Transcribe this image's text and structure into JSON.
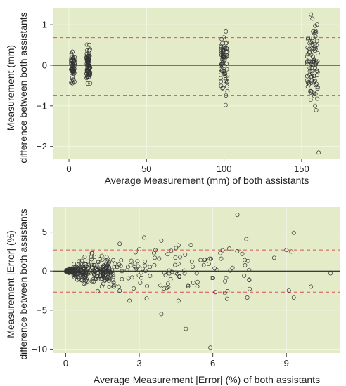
{
  "colors": {
    "panel_background": "#e3ebc9",
    "gridline": "#f2f5e6",
    "zero_line": "#000000",
    "limit_line": "#d9534f",
    "point_stroke": "#333333"
  },
  "chart_data": [
    {
      "type": "scatter",
      "xlabel": "Average Measurement (mm) of both assistants",
      "ylabel_lines": [
        "Measurement (mm)",
        "difference between both assistants"
      ],
      "xlim": [
        -10,
        175
      ],
      "ylim": [
        -2.3,
        1.4
      ],
      "xticks": [
        0,
        50,
        100,
        150
      ],
      "yticks": [
        -2,
        -1,
        0,
        1
      ],
      "grid": true,
      "reference_lines": [
        {
          "kind": "mean",
          "y": 0,
          "style": "solid"
        },
        {
          "kind": "upper-limit",
          "y": 0.68,
          "style": "dashed"
        },
        {
          "kind": "lower-limit",
          "y": -0.75,
          "style": "dashed"
        }
      ],
      "clusters": [
        {
          "x_center": 2.5,
          "x_spread": 1.2,
          "n": 55,
          "y_mean": 0.0,
          "y_sd": 0.2,
          "y_min": -0.5,
          "y_max": 0.5
        },
        {
          "x_center": 12.5,
          "x_spread": 1.2,
          "n": 75,
          "y_mean": 0.0,
          "y_sd": 0.2,
          "y_min": -0.45,
          "y_max": 0.55
        },
        {
          "x_center": 100,
          "x_spread": 2.2,
          "n": 70,
          "y_mean": 0.05,
          "y_sd": 0.38,
          "y_min": -1.0,
          "y_max": 0.95
        },
        {
          "x_center": 157,
          "x_spread": 3.5,
          "n": 90,
          "y_mean": 0.0,
          "y_sd": 0.55,
          "y_min": -1.45,
          "y_max": 1.25
        }
      ],
      "notable_points": [
        {
          "x": 161,
          "y": -2.15
        },
        {
          "x": 156,
          "y": 1.25
        },
        {
          "x": 157,
          "y": 1.15
        },
        {
          "x": 101,
          "y": -0.98
        },
        {
          "x": 160,
          "y": 1.0
        }
      ]
    },
    {
      "type": "scatter",
      "xlabel": "Average Measurement |Error| (%) of both assistants",
      "ylabel_lines": [
        "Measurement |Error| (%)",
        "difference between both assistants"
      ],
      "xlim": [
        -0.5,
        11.2
      ],
      "ylim": [
        -10.5,
        8.2
      ],
      "xticks": [
        0,
        3,
        6,
        9
      ],
      "yticks": [
        -10,
        -5,
        0,
        5
      ],
      "grid": true,
      "reference_lines": [
        {
          "kind": "mean",
          "y": 0,
          "style": "solid"
        },
        {
          "kind": "upper-limit",
          "y": 2.7,
          "style": "dashed"
        },
        {
          "kind": "lower-limit",
          "y": -2.7,
          "style": "dashed"
        }
      ],
      "dense_cloud": {
        "n": 230,
        "x_max": 1.8,
        "spread_per_unit_x": 0.75
      },
      "sparse_cloud": {
        "n": 140,
        "x_min": 1.5,
        "x_max": 7.5,
        "y_sd": 1.6
      },
      "notable_points": [
        {
          "x": 7.0,
          "y": 7.2
        },
        {
          "x": 3.2,
          "y": 4.3
        },
        {
          "x": 5.9,
          "y": -9.8
        },
        {
          "x": 4.9,
          "y": -7.4
        },
        {
          "x": 3.9,
          "y": -5.5
        },
        {
          "x": 9.3,
          "y": 4.9
        },
        {
          "x": 9.2,
          "y": 2.5
        },
        {
          "x": 9.0,
          "y": 2.7
        },
        {
          "x": 10.0,
          "y": -2.0
        },
        {
          "x": 10.8,
          "y": -0.3
        },
        {
          "x": 9.3,
          "y": -3.4
        },
        {
          "x": 9.1,
          "y": -2.5
        },
        {
          "x": 8.5,
          "y": 1.7
        },
        {
          "x": 7.5,
          "y": -2.3
        },
        {
          "x": 7.2,
          "y": 2.2
        },
        {
          "x": 7.3,
          "y": 1.4
        },
        {
          "x": 6.3,
          "y": 2.3
        },
        {
          "x": 6.8,
          "y": 0.4
        },
        {
          "x": 6.1,
          "y": -2.7
        },
        {
          "x": 6.5,
          "y": -1.3
        },
        {
          "x": 5.5,
          "y": 1.4
        },
        {
          "x": 5.2,
          "y": -1.5
        },
        {
          "x": 4.6,
          "y": 3.3
        },
        {
          "x": 4.3,
          "y": 2.6
        },
        {
          "x": 4.6,
          "y": -3.8
        },
        {
          "x": 3.9,
          "y": 3.9
        },
        {
          "x": 3.3,
          "y": -3.5
        },
        {
          "x": 2.6,
          "y": -3.8
        },
        {
          "x": 3.0,
          "y": 2.8
        },
        {
          "x": 2.2,
          "y": 3.5
        }
      ]
    }
  ]
}
